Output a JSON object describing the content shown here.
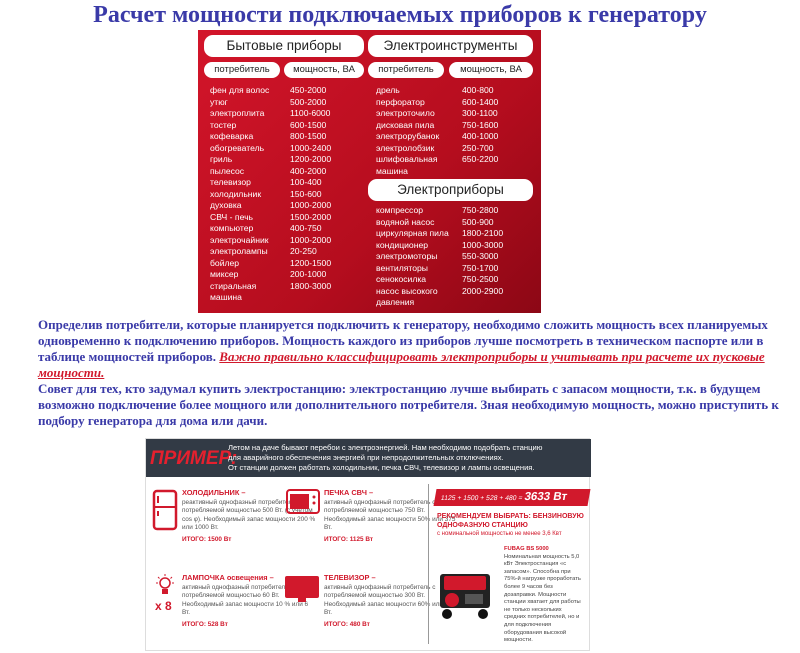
{
  "title": "Расчет мощности подключаемых приборов к генератору",
  "table": {
    "household": {
      "header": "Бытовые приборы",
      "col1": "потребитель",
      "col2": "мощность, ВА",
      "rows": [
        [
          "фен для волос",
          "450-2000"
        ],
        [
          "утюг",
          "500-2000"
        ],
        [
          "электроплита",
          "1100-6000"
        ],
        [
          "тостер",
          "600-1500"
        ],
        [
          "кофеварка",
          "800-1500"
        ],
        [
          "обогреватель",
          "1000-2400"
        ],
        [
          "гриль",
          "1200-2000"
        ],
        [
          "пылесос",
          "400-2000"
        ],
        [
          "телевизор",
          "100-400"
        ],
        [
          "холодильник",
          "150-600"
        ],
        [
          "духовка",
          "1000-2000"
        ],
        [
          "СВЧ - печь",
          "1500-2000"
        ],
        [
          "компьютер",
          "400-750"
        ],
        [
          "электрочайник",
          "1000-2000"
        ],
        [
          "электролампы",
          "20-250"
        ],
        [
          "бойлер",
          "1200-1500"
        ],
        [
          "миксер",
          "200-1000"
        ],
        [
          "стиральная машина",
          "1800-3000"
        ]
      ]
    },
    "tools": {
      "header": "Электроинструменты",
      "col1": "потребитель",
      "col2": "мощность, ВА",
      "rows": [
        [
          "дрель",
          "400-800"
        ],
        [
          "перфоратор",
          "600-1400"
        ],
        [
          "электроточило",
          "300-1100"
        ],
        [
          "дисковая пила",
          "750-1600"
        ],
        [
          "электрорубанок",
          "400-1000"
        ],
        [
          "электролобзик",
          "250-700"
        ],
        [
          "шлифовальная машина",
          "650-2200"
        ]
      ]
    },
    "appliances": {
      "header": "Электроприборы",
      "rows": [
        [
          "компрессор",
          "750-2800"
        ],
        [
          "водяной насос",
          "500-900"
        ],
        [
          "циркулярная пила",
          "1800-2100"
        ],
        [
          "кондиционер",
          "1000-3000"
        ],
        [
          "электромоторы",
          "550-3000"
        ],
        [
          "вентиляторы",
          "750-1700"
        ],
        [
          "сенокосилка",
          "750-2500"
        ],
        [
          "насос высокого давления",
          "2000-2900"
        ]
      ]
    }
  },
  "paragraph": {
    "p1": "Определив потребители, которые планируется подключить к генератору, необходимо сложить мощность всех планируемых одновременно к подключению приборов. Мощность каждого из приборов лучше посмотреть в техническом паспорте или в таблице мощностей приборов. ",
    "important": "Важно правильно классифицировать электроприборы и учитывать при расчете их пусковые мощности.",
    "p2": "Совет для тех, кто задумал купить электростанцию: электростанцию лучше выбирать с запасом мощности, т.к. в будущем возможно подключение более мощного или дополнительного потребителя. Зная необходимую мощность, можно приступить к подбору генератора для дома или дачи."
  },
  "example": {
    "label": "ПРИМЕР:",
    "intro": [
      "Летом на даче бывают перебои с электроэнергией. Нам необходимо подобрать станцию",
      "для аварийного обеспечения энергией при непродолжительных отключениях.",
      "От станции должен работать холодильник, печка СВЧ, телевизор и лампы освещения."
    ],
    "items": [
      {
        "title": "ХОЛОДИЛЬНИК –",
        "text": "реактивный однофазный потребитель с потребляемой мощностью 500 Вт. (с учетом cos φ). Необходимый запас мощности 200 % или 1000 Вт.",
        "total": "ИТОГО: 1500 Вт"
      },
      {
        "title": "ПЕЧКА СВЧ –",
        "text": "активный однофазный потребитель с потребляемой мощностью 750 Вт. Необходимый запас мощности 50% или 375 Вт.",
        "total": "ИТОГО: 1125 Вт"
      },
      {
        "title": "ЛАМПОЧКА освещения –",
        "text": "активный однофазный потребитель с потребляемой мощностью 60 Вт. Необходимый запас мощности 10 % или 6 Вт.",
        "total": "ИТОГО: 528 Вт"
      },
      {
        "title": "ТЕЛЕВИЗОР –",
        "text": "активный однофазный потребитель с потребляемой мощностью 300 Вт. Необходимый запас мощности 60% или180 Вт.",
        "total": "ИТОГО: 480 Вт"
      }
    ],
    "lamp_count": "x 8",
    "sum_formula": "1125 + 1500 + 528 + 480 = ",
    "sum_total": "3633 Вт",
    "recommend": "РЕКОМЕНДУЕМ ВЫБРАТЬ: БЕНЗИНОВУЮ ОДНОФАЗНУЮ СТАНЦИЮ",
    "recommend_sub": "с номинальной мощностью не менее 3,6 Квт",
    "model": "FUBAG BS 5000",
    "model_desc": "Номинальная мощность 5,0 кВт Электростанция «с запасом». Способна при 75%-й нагрузке проработать более 9 часов без дозаправки. Мощности станции хватает для работы не только нескольких средних потребителей, но и для подключения оборудования высокой мощности."
  },
  "colors": {
    "brand_red": "#d1192c",
    "text_blue": "#3a3aa8",
    "dark_bar": "#323a45"
  }
}
